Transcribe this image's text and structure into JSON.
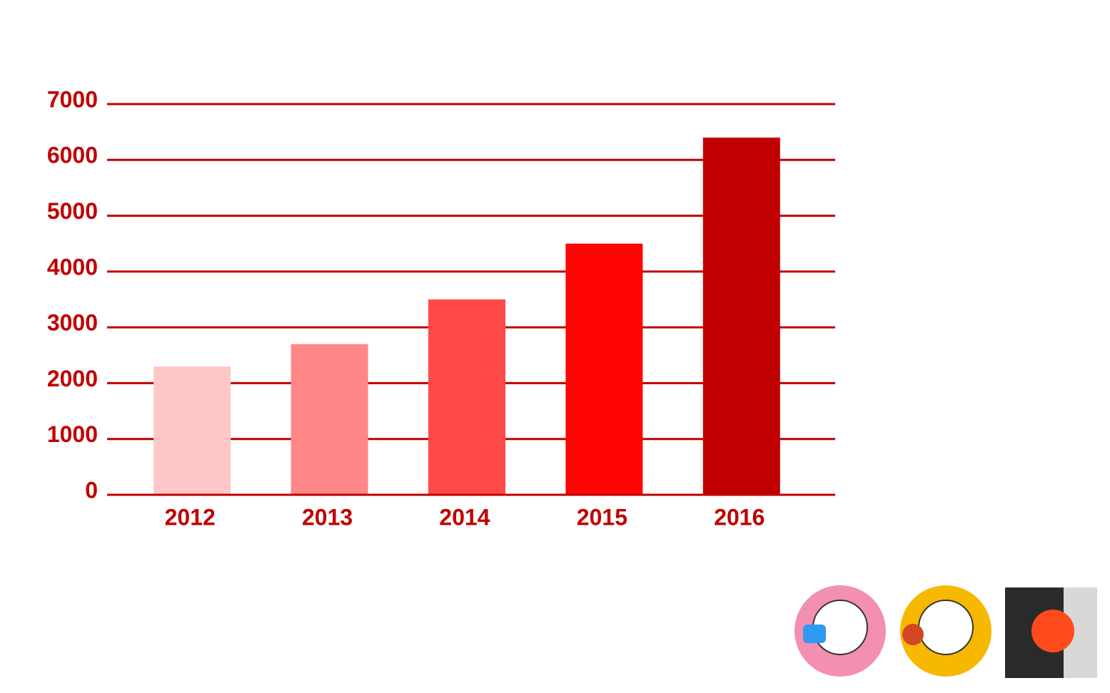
{
  "chart_data": {
    "type": "bar",
    "categories": [
      "2012",
      "2013",
      "2014",
      "2015",
      "2016"
    ],
    "values": [
      2300,
      2700,
      3500,
      4500,
      6400
    ],
    "colors": [
      "#ffc7c8",
      "#ff8787",
      "#ff4848",
      "#ff0505",
      "#c00000"
    ],
    "ylim": [
      0,
      7000
    ],
    "yticks": [
      0,
      1000,
      2000,
      3000,
      4000,
      5000,
      6000,
      7000
    ],
    "grid": true
  }
}
